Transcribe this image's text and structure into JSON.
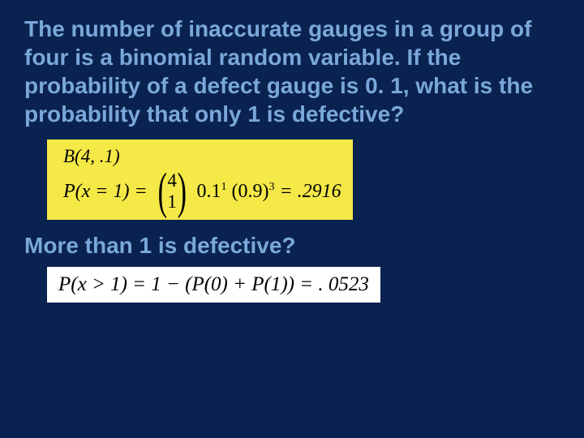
{
  "slide": {
    "background_color": "#0a2250",
    "text_color": "#7aa8d8",
    "font_family": "Comic Sans MS",
    "question_fontsize": 28,
    "math_font_family": "Georgia",
    "question1": "The number of inaccurate gauges in a group of four is a binomial random variable.  If the probability of a defect gauge is 0. 1, what is the probability that only 1 is defective?",
    "math1": {
      "dist_label": "B(4, .1)",
      "prob_prefix": "P(x = 1) = ",
      "binom_top": "4",
      "binom_bottom": "1",
      "term1_base": "0.1",
      "term1_exp": "1",
      "term2_base": "(0.9)",
      "term2_exp": "3",
      "result": " = .2916",
      "highlight_bg": "#f5e948"
    },
    "question2": "More than 1 is defective?",
    "math2": {
      "text": "P(x > 1) = 1 − (P(0) + P(1)) = . 0523",
      "highlight_bg": "#ffffff"
    }
  }
}
